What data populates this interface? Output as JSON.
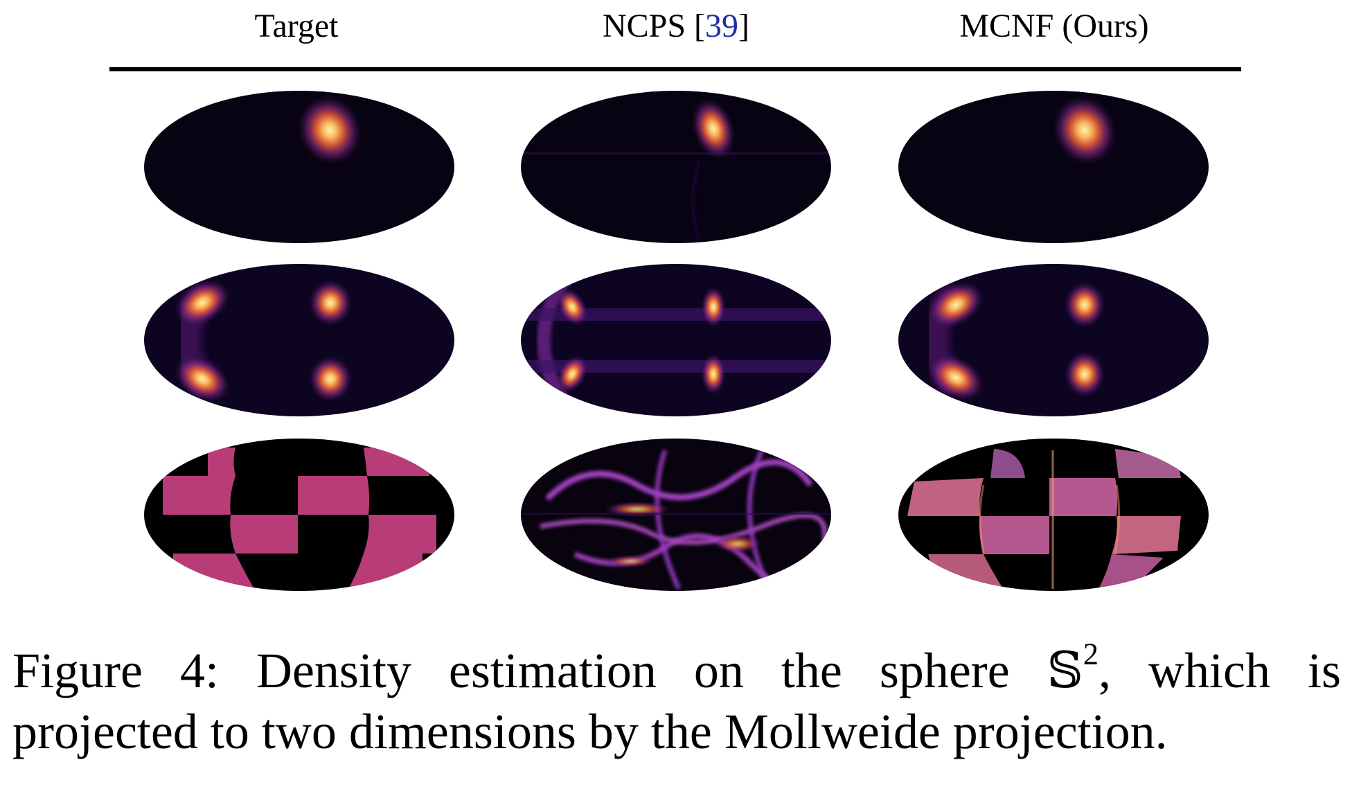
{
  "header": {
    "col1": "Target",
    "col2_prefix": "NCPS [",
    "col2_ref": "39",
    "col2_suffix": "]",
    "col3": "MCNF (Ours)"
  },
  "colors": {
    "background": "#000000",
    "density_dark": "#0b0418",
    "density_mid": "#6b1f8a",
    "density_bright": "#f07a3a",
    "density_peak": "#fff3b0",
    "checker_fill": "#b83c78",
    "ref_link": "#1f2fa3"
  },
  "caption": {
    "line1_a": "Figure 4:  Density estimation on the sphere ",
    "symbol": "𝕊",
    "exponent": "2",
    "line1_b": ", which is",
    "line2": "projected to two dimensions by the Mollweide projection."
  }
}
